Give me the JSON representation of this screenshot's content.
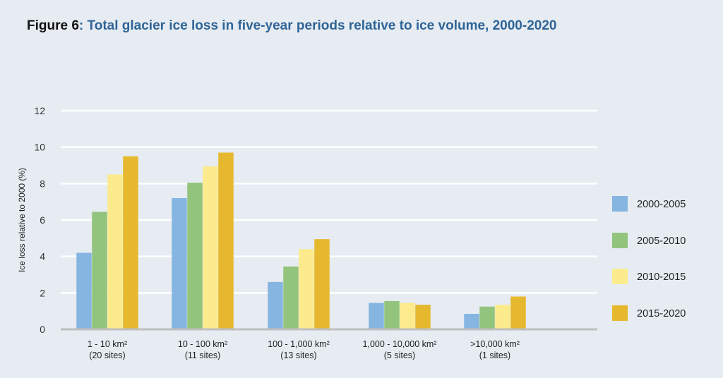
{
  "figure": {
    "label": "Figure 6",
    "colon": ":",
    "title": "Total glacier ice loss in five-year periods relative to ice volume, 2000-2020"
  },
  "chart_data": {
    "type": "bar",
    "title": "Total glacier ice loss in five-year periods relative to ice volume, 2000-2020",
    "xlabel": "",
    "ylabel": "Ice loss relative to 2000 (%)",
    "ylim": [
      0,
      12
    ],
    "yticks": [
      0,
      2,
      4,
      6,
      8,
      10,
      12
    ],
    "grid": true,
    "legend_position": "right",
    "categories": [
      {
        "line1": "1 - 10 km²",
        "line2": "(20 sites)"
      },
      {
        "line1": "10 - 100 km²",
        "line2": "(11 sites)"
      },
      {
        "line1": "100 - 1,000 km²",
        "line2": "(13 sites)"
      },
      {
        "line1": "1,000 - 10,000 km²",
        "line2": "(5 sites)"
      },
      {
        "line1": ">10,000 km²",
        "line2": "(1 sites)"
      }
    ],
    "series": [
      {
        "name": "2000-2005",
        "color": "#85b5e0",
        "values": [
          4.2,
          7.2,
          2.6,
          1.45,
          0.85
        ]
      },
      {
        "name": "2005-2010",
        "color": "#93c47d",
        "values": [
          6.45,
          8.05,
          3.45,
          1.55,
          1.25
        ]
      },
      {
        "name": "2010-2015",
        "color": "#fbeb8c",
        "values": [
          8.5,
          8.95,
          4.4,
          1.45,
          1.35
        ]
      },
      {
        "name": "2015-2020",
        "color": "#e6b82e",
        "values": [
          9.5,
          9.7,
          4.95,
          1.35,
          1.8
        ]
      }
    ]
  }
}
